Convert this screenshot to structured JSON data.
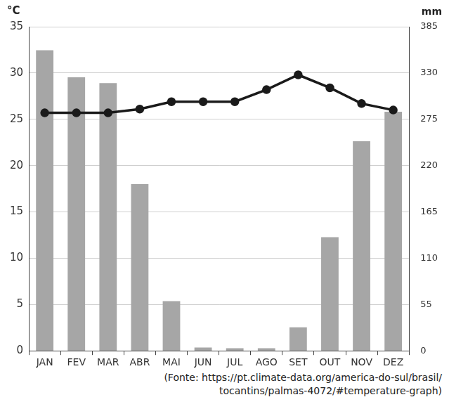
{
  "chart_data": {
    "type": "bar",
    "y_label": "°C",
    "y2_label": "mm",
    "categories": [
      "JAN",
      "FEV",
      "MAR",
      "ABR",
      "MAI",
      "JUN",
      "JUL",
      "AGO",
      "SET",
      "OUT",
      "NOV",
      "DEZ"
    ],
    "series": [
      {
        "type": "bar",
        "axis": "y2",
        "color": "#a6a6a6",
        "values": [
          357,
          325,
          318,
          198,
          59,
          4,
          3,
          3,
          28,
          135,
          249,
          284
        ]
      },
      {
        "type": "line",
        "color": "#1a1a1a",
        "marker": "circle",
        "line_style": "solid",
        "values": [
          25.7,
          25.7,
          25.7,
          26.1,
          26.9,
          26.9,
          26.9,
          28.2,
          29.8,
          28.4,
          26.7,
          26.0
        ]
      }
    ],
    "ylim": [
      0,
      35
    ],
    "yticks": [
      0,
      5,
      10,
      15,
      20,
      25,
      30,
      35
    ],
    "y2lim": [
      0,
      385
    ],
    "y2ticks": [
      0,
      55,
      110,
      165,
      220,
      275,
      330,
      385
    ],
    "grid": true,
    "annotations": [
      "(Fonte: https://pt.climate-data.org/america-do-sul/brasil/",
      "tocantins/palmas-4072/#temperature-graph)"
    ]
  }
}
